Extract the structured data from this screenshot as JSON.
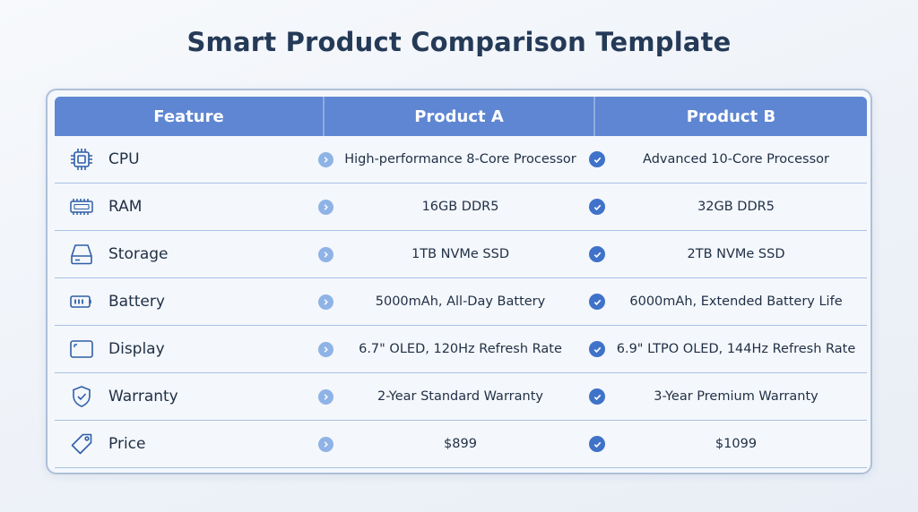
{
  "title": "Smart Product Comparison Template",
  "header": {
    "feature": "Feature",
    "product_a": "Product A",
    "product_b": "Product B"
  },
  "colors": {
    "header_bg": "#5f86d2",
    "check_blue": "#3f72c8",
    "arrow_blue": "#8fb3e6",
    "icon_stroke": "#2f5fa8"
  },
  "rows": [
    {
      "icon": "cpu-icon",
      "feature": "CPU",
      "a": "High-performance 8-Core Processor",
      "b": "Advanced 10-Core Processor"
    },
    {
      "icon": "ram-icon",
      "feature": "RAM",
      "a": "16GB DDR5",
      "b": "32GB DDR5"
    },
    {
      "icon": "storage-icon",
      "feature": "Storage",
      "a": "1TB NVMe SSD",
      "b": "2TB NVMe SSD"
    },
    {
      "icon": "battery-icon",
      "feature": "Battery",
      "a": "5000mAh, All-Day Battery",
      "b": "6000mAh, Extended Battery Life"
    },
    {
      "icon": "display-icon",
      "feature": "Display",
      "a": "6.7\" OLED, 120Hz Refresh Rate",
      "b": "6.9\" LTPO OLED, 144Hz Refresh Rate"
    },
    {
      "icon": "shield-icon",
      "feature": "Warranty",
      "a": "2-Year Standard Warranty",
      "b": "3-Year Premium Warranty"
    },
    {
      "icon": "price-tag-icon",
      "feature": "Price",
      "a": "$899",
      "b": "$1099"
    }
  ]
}
